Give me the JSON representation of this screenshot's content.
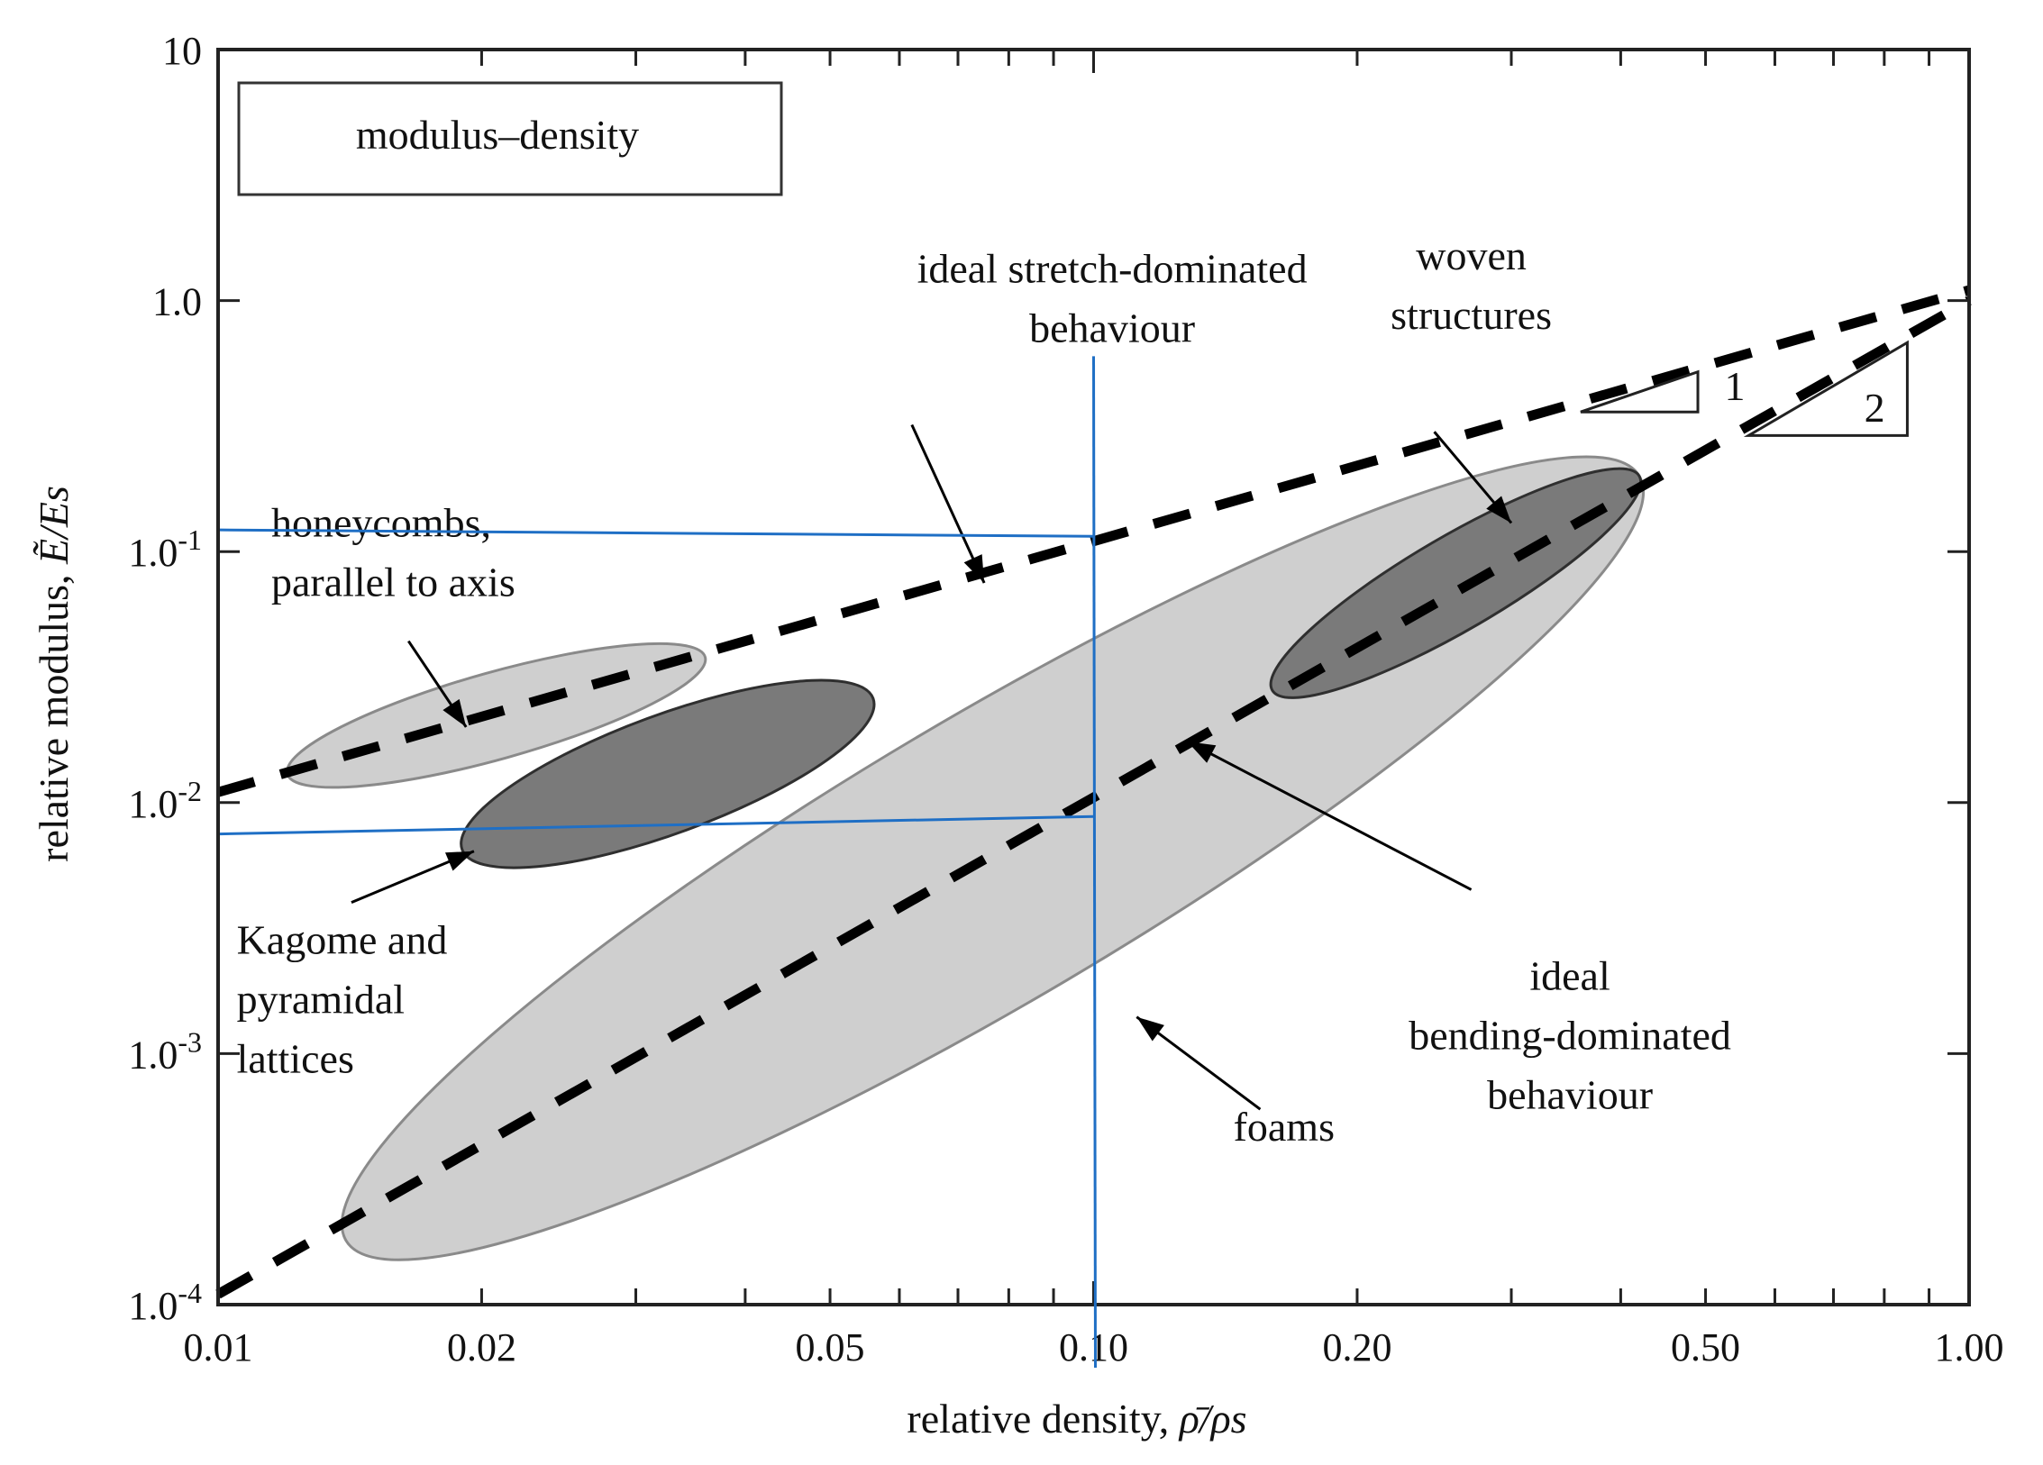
{
  "chart_data": {
    "type": "scatter",
    "title": "",
    "legend_box": "modulus–density",
    "xlabel_text": "relative density, ",
    "xlabel_symbol": "ρ̄/ρs",
    "ylabel_text": "relative modulus, ",
    "ylabel_symbol": "Ẽ/Es",
    "x_scale": "log",
    "y_scale": "log",
    "xlim": [
      0.01,
      1.0
    ],
    "ylim": [
      0.0001,
      10
    ],
    "x_ticks": [
      {
        "value": 0.01,
        "label": "0.01"
      },
      {
        "value": 0.02,
        "label": "0.02"
      },
      {
        "value": 0.05,
        "label": "0.05"
      },
      {
        "value": 0.1,
        "label": "0.10"
      },
      {
        "value": 0.2,
        "label": "0.20"
      },
      {
        "value": 0.5,
        "label": "0.50"
      },
      {
        "value": 1.0,
        "label": "1.00"
      }
    ],
    "y_ticks": [
      {
        "value": 10,
        "label": "10",
        "base": "",
        "exp": ""
      },
      {
        "value": 1,
        "label": "1.0",
        "base": "",
        "exp": ""
      },
      {
        "value": 0.1,
        "label": "",
        "base": "1.0",
        "exp": "-1"
      },
      {
        "value": 0.01,
        "label": "",
        "base": "1.0",
        "exp": "-2"
      },
      {
        "value": 0.001,
        "label": "",
        "base": "1.0",
        "exp": "-3"
      },
      {
        "value": 0.0001,
        "label": "",
        "base": "1.0",
        "exp": "-4"
      }
    ],
    "grid": false,
    "guide_lines": [
      {
        "orientation": "vertical",
        "x": 0.1,
        "y_from": 0.0001,
        "y_to": 0.6,
        "color": "#1f6fc5"
      },
      {
        "orientation": "horizontal",
        "y_left": 0.122,
        "y_right": 0.115,
        "x_to": 0.1,
        "color": "#1f6fc5"
      },
      {
        "orientation": "horizontal",
        "y_left": 0.0075,
        "y_right": 0.0088,
        "x_to": 0.1,
        "color": "#1f6fc5"
      }
    ],
    "trend_lines": [
      {
        "name": "ideal stretch-dominated behaviour",
        "slope": 1,
        "x": [
          0.01,
          1.0
        ],
        "y": [
          0.011,
          1.1
        ]
      },
      {
        "name": "ideal bending-dominated behaviour",
        "slope": 2,
        "x": [
          0.01,
          1.0
        ],
        "y": [
          0.00011,
          1.0
        ]
      }
    ],
    "regions": [
      {
        "name": "foams",
        "x_range": [
          0.014,
          0.42
        ],
        "y_range": [
          0.00018,
          0.2
        ],
        "shade": "light"
      },
      {
        "name": "woven structures",
        "x_range": [
          0.16,
          0.42
        ],
        "y_range": [
          0.028,
          0.2
        ],
        "shade": "dark"
      },
      {
        "name": "honeycombs, parallel to axis",
        "x_range": [
          0.012,
          0.036
        ],
        "y_range": [
          0.013,
          0.038
        ],
        "shade": "light"
      },
      {
        "name": "Kagome and pyramidal lattices",
        "x_range": [
          0.019,
          0.056
        ],
        "y_range": [
          0.0065,
          0.026
        ],
        "shade": "dark"
      }
    ],
    "annotations": [
      {
        "lines": [
          "ideal stretch-dominated",
          "behaviour"
        ]
      },
      {
        "lines": [
          "woven",
          "structures"
        ]
      },
      {
        "lines": [
          "honeycombs,",
          "parallel to axis"
        ]
      },
      {
        "lines": [
          "Kagome and",
          "pyramidal",
          "lattices"
        ]
      },
      {
        "lines": [
          "ideal",
          "bending-dominated",
          "behaviour"
        ]
      },
      {
        "lines": [
          "foams"
        ]
      }
    ],
    "slope_triangles": [
      {
        "label": "1"
      },
      {
        "label": "2"
      }
    ]
  }
}
